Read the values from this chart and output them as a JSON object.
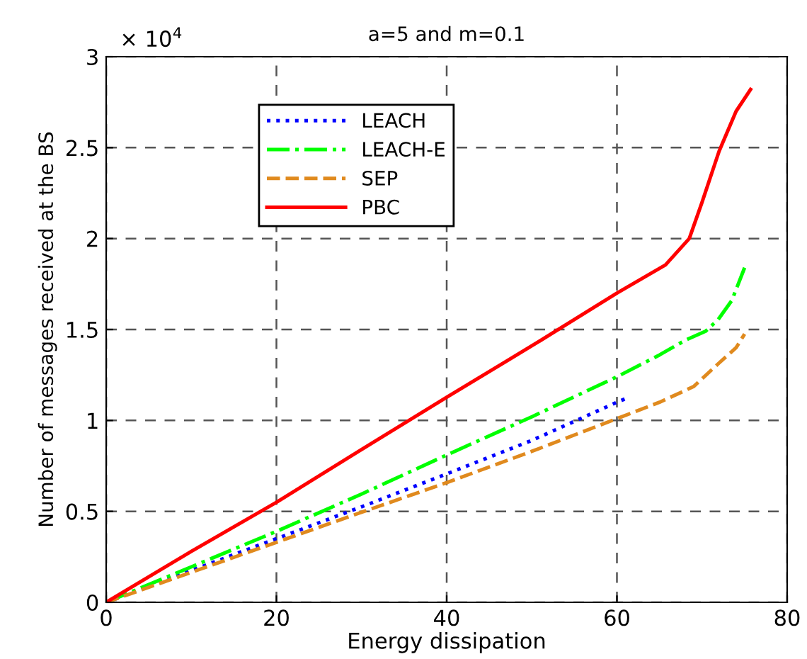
{
  "chart_data": {
    "type": "line",
    "title": "a=5 and m=0.1",
    "xlabel": "Energy dissipation",
    "ylabel": "Number of messages received at the BS",
    "annotations": [
      "× 10$^{4}$"
    ],
    "series": [
      {
        "name": "LEACH",
        "color": "#0000ff",
        "line_style": "dotted",
        "x": [
          0,
          10,
          20,
          30,
          40,
          50,
          60,
          61.4
        ],
        "values": [
          0,
          0.175,
          0.35,
          0.525,
          0.706,
          0.89,
          1.1,
          1.127
        ]
      },
      {
        "name": "LEACH-E",
        "color": "#00ff00",
        "line_style": "dashdot",
        "x": [
          0,
          10,
          20,
          30,
          40,
          50,
          60,
          65,
          68,
          70.4,
          71.9,
          73.5,
          75
        ],
        "values": [
          0,
          0.195,
          0.39,
          0.595,
          0.81,
          1.02,
          1.24,
          1.36,
          1.44,
          1.49,
          1.555,
          1.66,
          1.84
        ]
      },
      {
        "name": "SEP",
        "color": "#e08a1e",
        "line_style": "dashed",
        "x": [
          0,
          10,
          20,
          30,
          40,
          50,
          60,
          65,
          69,
          72,
          74,
          75
        ],
        "values": [
          0,
          0.165,
          0.33,
          0.495,
          0.658,
          0.83,
          1.01,
          1.1,
          1.186,
          1.316,
          1.4,
          1.475
        ]
      },
      {
        "name": "PBC",
        "color": "#ff0000",
        "line_style": "solid",
        "x": [
          0,
          10,
          20,
          30,
          40,
          50.7,
          60,
          65.7,
          68.5,
          70,
          72,
          74,
          75.7
        ],
        "values": [
          0,
          0.28,
          0.55,
          0.84,
          1.127,
          1.43,
          1.7,
          1.855,
          2.0,
          2.2,
          2.48,
          2.7,
          2.82
        ]
      }
    ],
    "xlim": [
      0,
      80
    ],
    "xticks": [
      0,
      20,
      40,
      60,
      80
    ],
    "ylim": [
      0,
      3
    ],
    "yticks": [
      0,
      0.5,
      1,
      1.5,
      2,
      2.5,
      3
    ],
    "grid": true,
    "legend": "top left",
    "marker": "none"
  }
}
